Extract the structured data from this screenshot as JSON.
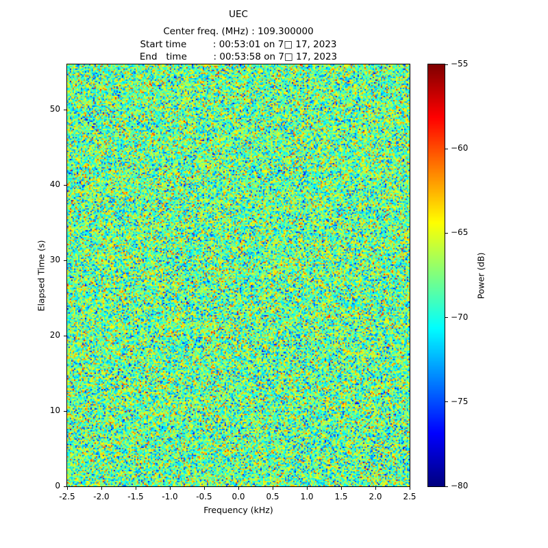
{
  "figure": {
    "title": "UEC",
    "info_lines": [
      "Center freq. (MHz) : 109.300000",
      "Start time         : 00:53:01 on 7□ 17, 2023",
      "End   time         : 00:53:58 on 7□ 17, 2023"
    ]
  },
  "chart_data": {
    "type": "heatmap",
    "title": "UEC",
    "center_freq_mhz": "109.300000",
    "start_time": "00:53:01 on 7□ 17, 2023",
    "end_time": "00:53:58 on 7□ 17, 2023",
    "xlabel": "Frequency (kHz)",
    "ylabel": "Elapsed Time (s)",
    "xlim": [
      -2.5,
      2.5
    ],
    "ylim": [
      0,
      56
    ],
    "xticks": [
      -2.5,
      -2.0,
      -1.5,
      -1.0,
      -0.5,
      0.0,
      0.5,
      1.0,
      1.5,
      2.0,
      2.5
    ],
    "xtick_labels": [
      "-2.5",
      "-2.0",
      "-1.5",
      "-1.0",
      "-0.5",
      "0.0",
      "0.5",
      "1.0",
      "1.5",
      "2.0",
      "2.5"
    ],
    "yticks": [
      0,
      10,
      20,
      30,
      40,
      50
    ],
    "ytick_labels": [
      "0",
      "10",
      "20",
      "30",
      "40",
      "50"
    ],
    "colorbar": {
      "label": "Power (dB)",
      "colormap": "jet",
      "clim": [
        -80,
        -55
      ],
      "ticks": [
        -55,
        -60,
        -65,
        -70,
        -75,
        -80
      ],
      "tick_labels": [
        "−55",
        "−60",
        "−65",
        "−70",
        "−75",
        "−80"
      ]
    },
    "content_description": "broadband noise spectrogram, no discrete signal visible",
    "noise_mean_db": -68,
    "noise_std_db": 3.5
  }
}
